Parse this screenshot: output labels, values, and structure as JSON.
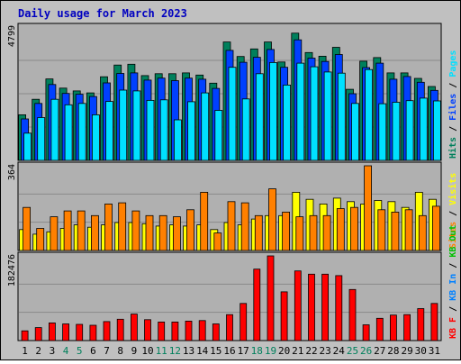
{
  "chart_data": {
    "type": "bar",
    "title": "Daily usage for March 2023",
    "categories": [
      "1",
      "2",
      "3",
      "4",
      "5",
      "6",
      "7",
      "8",
      "9",
      "10",
      "11",
      "12",
      "13",
      "14",
      "15",
      "16",
      "17",
      "18",
      "19",
      "20",
      "21",
      "22",
      "23",
      "24",
      "25",
      "26",
      "27",
      "28",
      "29",
      "30",
      "31"
    ],
    "weekend_days": [
      "4",
      "5",
      "11",
      "12",
      "18",
      "19",
      "25",
      "26"
    ],
    "panels": [
      {
        "id": "hits_files_pages",
        "ymax_label": "4799",
        "ylim": [
          0,
          4799
        ],
        "right_labels": [
          {
            "text": "Hits",
            "color": "#00805c"
          },
          {
            "text": "Files",
            "color": "#0040ff"
          },
          {
            "text": "Pages",
            "color": "#00e0ff"
          }
        ],
        "series": [
          {
            "name": "Hits",
            "color": "#00805c",
            "values": [
              1640,
              2200,
              2930,
              2600,
              2500,
              2430,
              3010,
              3430,
              3460,
              3050,
              3120,
              3120,
              3150,
              3070,
              2780,
              4260,
              3740,
              4010,
              4260,
              3540,
              4580,
              3880,
              3750,
              4070,
              2560,
              3570,
              3700,
              3150,
              3150,
              2950,
              2660
            ]
          },
          {
            "name": "Files",
            "color": "#0040ff",
            "values": [
              1490,
              2050,
              2730,
              2410,
              2380,
              2300,
              2790,
              3130,
              3150,
              2890,
              2960,
              2870,
              2960,
              2920,
              2590,
              3960,
              3530,
              3710,
              3990,
              3350,
              4340,
              3680,
              3560,
              3810,
              2400,
              3340,
              3500,
              2920,
              3020,
              2810,
              2520
            ]
          },
          {
            "name": "Pages",
            "color": "#00e0ff",
            "values": [
              980,
              1540,
              2200,
              2000,
              2050,
              1640,
              2120,
              2530,
              2500,
              2160,
              2180,
              1460,
              2110,
              2430,
              1800,
              3350,
              2210,
              3120,
              3520,
              2710,
              3500,
              3370,
              3180,
              3140,
              2050,
              3270,
              2040,
              2090,
              2150,
              2240,
              2140
            ]
          }
        ]
      },
      {
        "id": "visits_sites",
        "ymax_label": "364",
        "ylim": [
          0,
          364
        ],
        "right_labels": [
          {
            "text": "Sites",
            "color": "#ff8000"
          },
          {
            "text": "Visits",
            "color": "#ffff00"
          }
        ],
        "series": [
          {
            "name": "Visits",
            "color": "#ffff00",
            "values": [
              90,
              70,
              80,
              95,
              110,
              100,
              110,
              120,
              120,
              115,
              105,
              110,
              105,
              110,
              90,
              120,
              110,
              135,
              150,
              150,
              250,
              220,
              200,
              225,
              210,
              200,
              215,
              210,
              185,
              250,
              220
            ]
          },
          {
            "name": "Sites",
            "color": "#ff8000",
            "values": [
              185,
              95,
              145,
              170,
              170,
              150,
              200,
              205,
              170,
              150,
              150,
              145,
              175,
              250,
              75,
              210,
              205,
              150,
              265,
              165,
              145,
              150,
              150,
              180,
              185,
              364,
              175,
              165,
              175,
              150,
              190
            ]
          }
        ]
      },
      {
        "id": "kb_in_out",
        "ymax_label": "182476",
        "ylim": [
          0,
          182476
        ],
        "right_labels": [
          {
            "text": "KB F",
            "color": "#ff0000"
          },
          {
            "text": "KB In",
            "color": "#0080ff"
          },
          {
            "text": "KB Out",
            "color": "#00c000"
          }
        ],
        "series": [
          {
            "name": "KB F",
            "color": "#ff0000",
            "values": [
              21000,
              28000,
              38000,
              36000,
              35000,
              33000,
              41000,
              46000,
              57000,
              45000,
              40000,
              40000,
              42000,
              43000,
              36000,
              56000,
              80000,
              154000,
              182476,
              105000,
              150000,
              143000,
              143000,
              140000,
              110000,
              34000,
              48000,
              55000,
              56000,
              69000,
              80000
            ]
          }
        ]
      }
    ]
  },
  "colors": {
    "background": "#c0c0c0",
    "plot_background": "#b0b0b0",
    "title": "#0000c0",
    "axis_text": "#000000",
    "weekend_text": "#00805c",
    "gridline": "#8a8a8a"
  }
}
